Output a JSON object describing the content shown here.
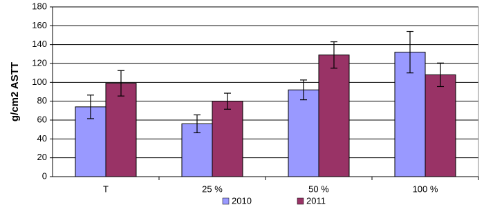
{
  "chart_data": {
    "type": "bar",
    "y_label": "g/cm2 ASTT",
    "categories": [
      "T",
      "25 %",
      "50 %",
      "100 %"
    ],
    "series": [
      {
        "name": "2010",
        "color": "#9999ff",
        "values": [
          74,
          56,
          92,
          132
        ],
        "errors": [
          12.5,
          9.5,
          10.5,
          22
        ]
      },
      {
        "name": "2011",
        "color": "#993366",
        "values": [
          99,
          80,
          129,
          108
        ],
        "errors": [
          13.5,
          8.5,
          14,
          12.5
        ]
      }
    ],
    "ylim": [
      0,
      180
    ],
    "yticks": [
      0,
      20,
      40,
      60,
      80,
      100,
      120,
      140,
      160,
      180
    ],
    "grid": true,
    "legend": "bottom"
  }
}
